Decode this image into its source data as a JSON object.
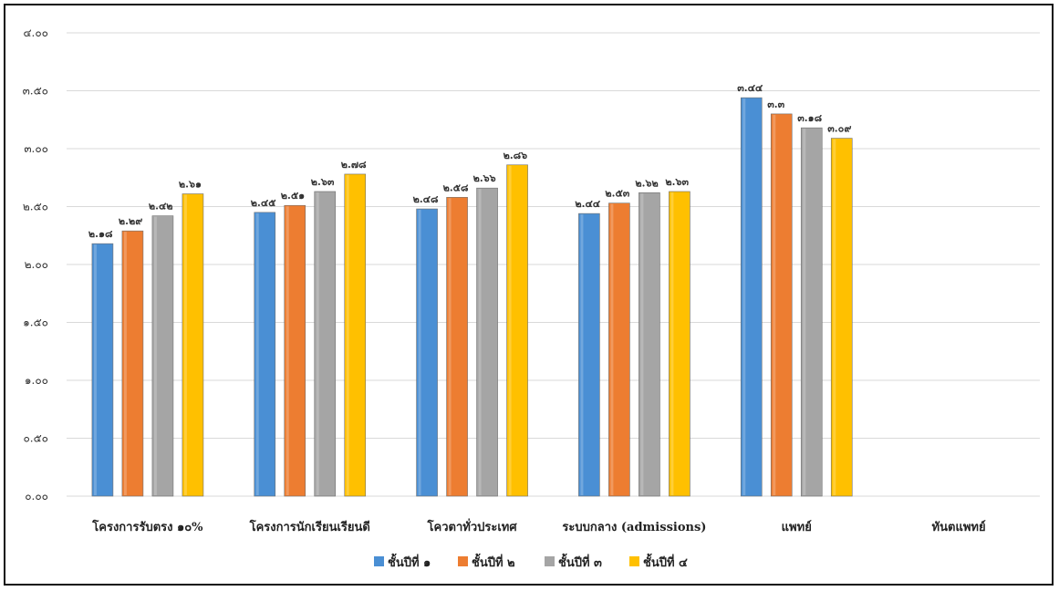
{
  "chart_data": {
    "type": "bar",
    "title": "",
    "xlabel": "",
    "ylabel": "",
    "ylim": [
      0,
      4
    ],
    "yticks": [
      0,
      0.5,
      1,
      1.5,
      2,
      2.5,
      3,
      3.5,
      4
    ],
    "ytick_labels": [
      "๐.๐๐",
      "๐.๕๐",
      "๑.๐๐",
      "๑.๕๐",
      "๒.๐๐",
      "๒.๕๐",
      "๓.๐๐",
      "๓.๕๐",
      "๔.๐๐"
    ],
    "grid": true,
    "legend_position": "bottom",
    "categories": [
      "โครงการรับตรง ๑๐%",
      "โครงการนักเรียนเรียนดี",
      "โควตาทั่วประเทศ",
      "ระบบกลาง (admissions)",
      "แพทย์",
      "ทันตแพทย์"
    ],
    "series": [
      {
        "name": "ชั้นปีที่ ๑",
        "color": "#4a8fd4",
        "values": [
          2.18,
          2.45,
          2.48,
          2.44,
          3.44,
          null
        ],
        "labels": [
          "๒.๑๘",
          "๒.๔๕",
          "๒.๔๘",
          "๒.๔๔",
          "๓.๔๔",
          ""
        ]
      },
      {
        "name": "ชั้นปีที่ ๒",
        "color": "#ed7d31",
        "values": [
          2.29,
          2.51,
          2.58,
          2.53,
          3.3,
          null
        ],
        "labels": [
          "๒.๒๙",
          "๒.๕๑",
          "๒.๕๘",
          "๒.๕๓",
          "๓.๓",
          ""
        ]
      },
      {
        "name": "ชั้นปีที่ ๓",
        "color": "#a5a5a5",
        "values": [
          2.42,
          2.63,
          2.66,
          2.62,
          3.18,
          null
        ],
        "labels": [
          "๒.๔๒",
          "๒.๖๓",
          "๒.๖๖",
          "๒.๖๒",
          "๓.๑๘",
          ""
        ]
      },
      {
        "name": "ชั้นปีที่ ๔",
        "color": "#ffc000",
        "values": [
          2.61,
          2.78,
          2.86,
          2.63,
          3.09,
          null
        ],
        "labels": [
          "๒.๖๑",
          "๒.๗๘",
          "๒.๘๖",
          "๒.๖๓",
          "๓.๐๙",
          ""
        ]
      }
    ]
  }
}
